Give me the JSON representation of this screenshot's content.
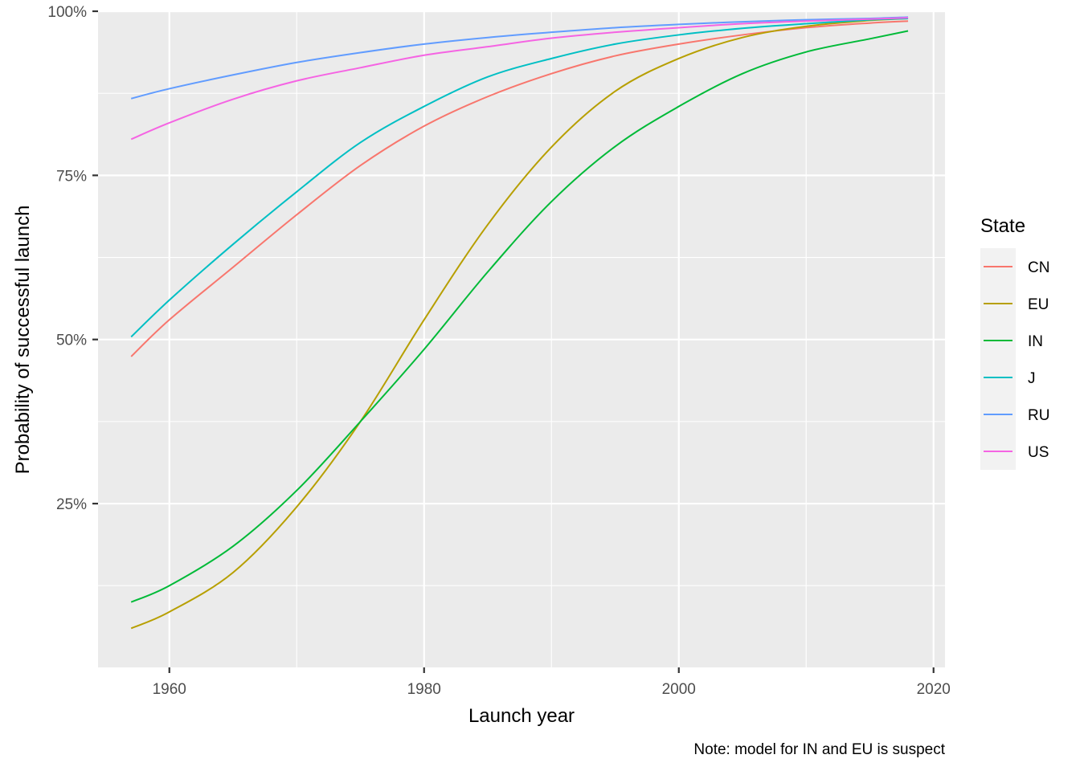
{
  "chart_data": {
    "type": "line",
    "xlabel": "Launch year",
    "ylabel": "Probability of successful launch",
    "caption": "Note: model for IN and EU is suspect",
    "xlim": [
      1954.4,
      2020.9
    ],
    "ylim": [
      0.0005,
      1.0
    ],
    "x_ticks": [
      1960,
      1980,
      2000,
      2020
    ],
    "x_tick_labels": [
      "1960",
      "1980",
      "2000",
      "2020"
    ],
    "y_ticks": [
      0.25,
      0.5,
      0.75,
      1.0
    ],
    "y_tick_labels": [
      "25%",
      "50%",
      "75%",
      "100%"
    ],
    "grid": true,
    "background": "#ebebeb",
    "legend": {
      "title": "State",
      "position": "right"
    },
    "x": [
      1957,
      1960,
      1965,
      1970,
      1975,
      1980,
      1985,
      1990,
      1995,
      2000,
      2005,
      2010,
      2015,
      2018
    ],
    "series": [
      {
        "name": "CN",
        "color": "#F8766D",
        "values": [
          0.474,
          0.53,
          0.61,
          0.69,
          0.765,
          0.825,
          0.87,
          0.905,
          0.932,
          0.95,
          0.964,
          0.975,
          0.982,
          0.985
        ]
      },
      {
        "name": "EU",
        "color": "#B79F00",
        "values": [
          0.06,
          0.085,
          0.145,
          0.245,
          0.375,
          0.53,
          0.675,
          0.793,
          0.878,
          0.928,
          0.96,
          0.977,
          0.986,
          0.989
        ]
      },
      {
        "name": "IN",
        "color": "#00BA38",
        "values": [
          0.1,
          0.125,
          0.185,
          0.27,
          0.375,
          0.485,
          0.603,
          0.71,
          0.794,
          0.855,
          0.905,
          0.938,
          0.958,
          0.97
        ]
      },
      {
        "name": "J",
        "color": "#00BFC4",
        "values": [
          0.504,
          0.56,
          0.645,
          0.725,
          0.8,
          0.855,
          0.9,
          0.928,
          0.95,
          0.964,
          0.974,
          0.981,
          0.987,
          0.989
        ]
      },
      {
        "name": "RU",
        "color": "#619CFF",
        "values": [
          0.867,
          0.882,
          0.903,
          0.922,
          0.937,
          0.95,
          0.96,
          0.968,
          0.975,
          0.98,
          0.984,
          0.987,
          0.989,
          0.991
        ]
      },
      {
        "name": "US",
        "color": "#F564E3",
        "values": [
          0.805,
          0.83,
          0.866,
          0.894,
          0.914,
          0.933,
          0.946,
          0.959,
          0.968,
          0.975,
          0.981,
          0.985,
          0.988,
          0.99
        ]
      }
    ]
  }
}
